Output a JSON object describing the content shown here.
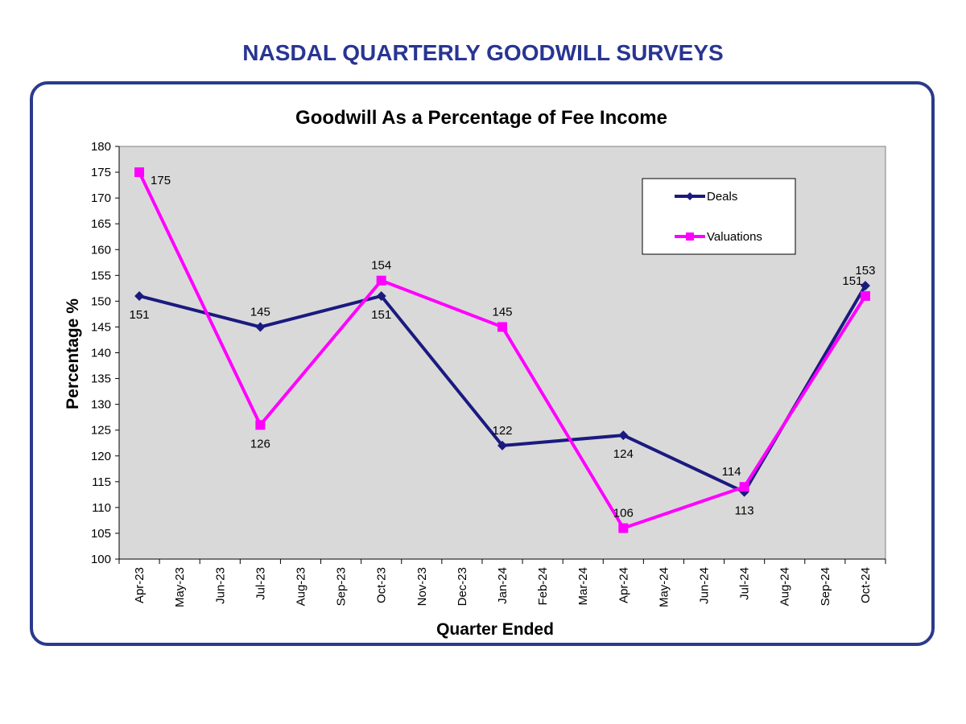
{
  "header": {
    "title": "NASDAL QUARTERLY GOODWILL SURVEYS"
  },
  "chart_data": {
    "type": "line",
    "title": "Goodwill As a Percentage of Fee Income",
    "xlabel": "Quarter Ended",
    "ylabel": "Percentage %",
    "ylim": [
      100,
      180
    ],
    "ytick_step": 5,
    "categories": [
      "Apr-23",
      "May-23",
      "Jun-23",
      "Jul-23",
      "Aug-23",
      "Sep-23",
      "Oct-23",
      "Nov-23",
      "Dec-23",
      "Jan-24",
      "Feb-24",
      "Mar-24",
      "Apr-24",
      "May-24",
      "Jun-24",
      "Jul-24",
      "Aug-24",
      "Sep-24",
      "Oct-24"
    ],
    "grid": false,
    "legend": "top-right",
    "series": [
      {
        "name": "Deals",
        "color": "#1a1a80",
        "marker": "diamond",
        "points": [
          {
            "x": "Apr-23",
            "y": 151,
            "label": "151",
            "label_pos": "below"
          },
          {
            "x": "Jul-23",
            "y": 145,
            "label": "145",
            "label_pos": "above"
          },
          {
            "x": "Oct-23",
            "y": 151,
            "label": "151",
            "label_pos": "below"
          },
          {
            "x": "Jan-24",
            "y": 122,
            "label": "122",
            "label_pos": "above"
          },
          {
            "x": "Apr-24",
            "y": 124,
            "label": "124",
            "label_pos": "below"
          },
          {
            "x": "Jul-24",
            "y": 113,
            "label": "113",
            "label_pos": "below"
          },
          {
            "x": "Oct-24",
            "y": 153,
            "label": "153",
            "label_pos": "above"
          }
        ]
      },
      {
        "name": "Valuations",
        "color": "#ff00ff",
        "marker": "square",
        "points": [
          {
            "x": "Apr-23",
            "y": 175,
            "label": "175",
            "label_pos": "right"
          },
          {
            "x": "Jul-23",
            "y": 126,
            "label": "126",
            "label_pos": "below"
          },
          {
            "x": "Oct-23",
            "y": 154,
            "label": "154",
            "label_pos": "above"
          },
          {
            "x": "Jan-24",
            "y": 145,
            "label": "145",
            "label_pos": "above"
          },
          {
            "x": "Apr-24",
            "y": 106,
            "label": "106",
            "label_pos": "above"
          },
          {
            "x": "Jul-24",
            "y": 114,
            "label": "114",
            "label_pos": "above-left"
          },
          {
            "x": "Oct-24",
            "y": 151,
            "label": "151",
            "label_pos": "above-left"
          }
        ]
      }
    ]
  }
}
